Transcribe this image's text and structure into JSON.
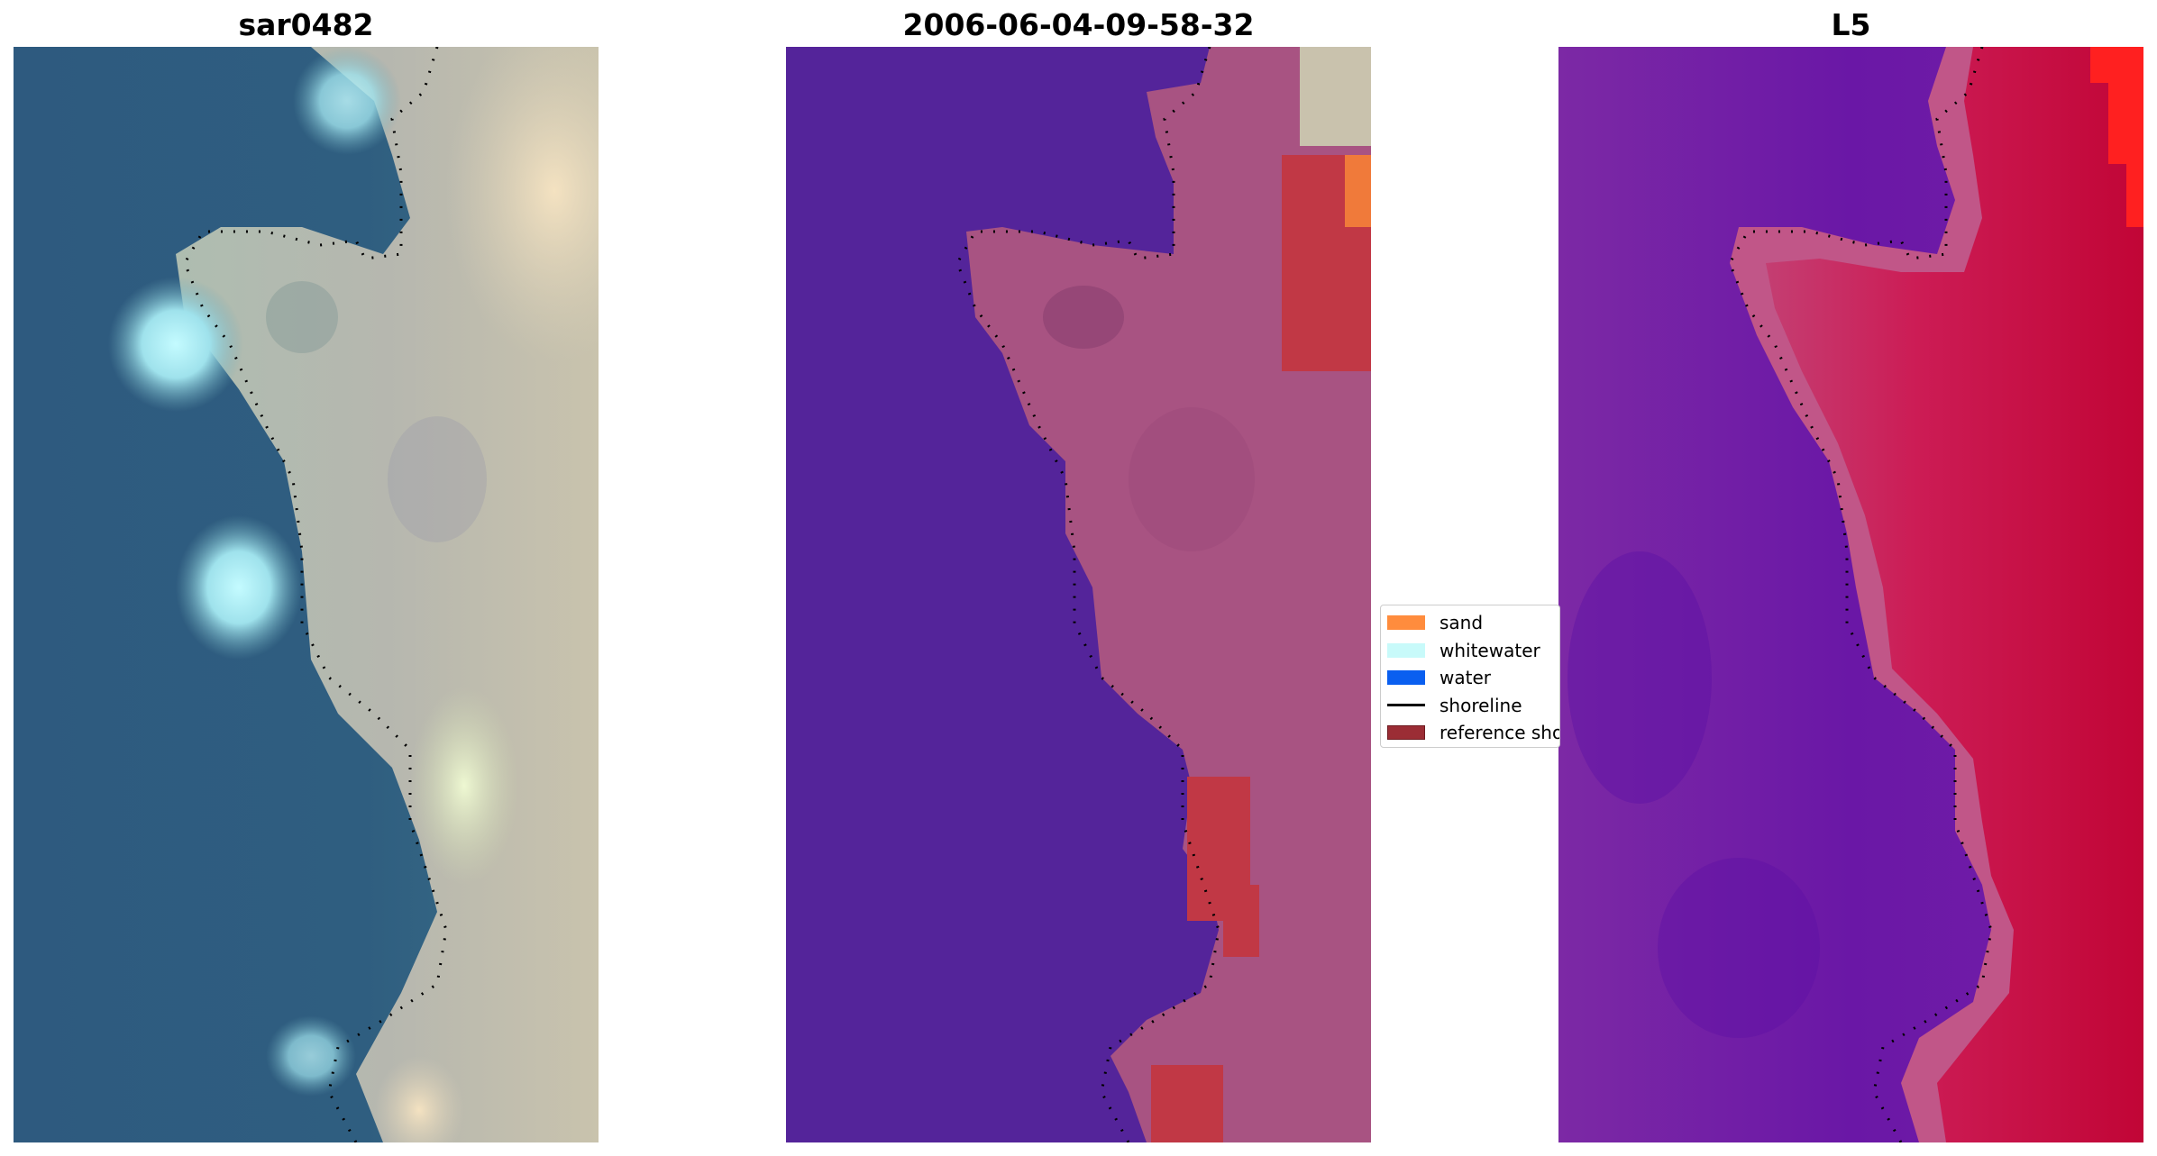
{
  "panels": [
    {
      "title": "sar0482",
      "kind": "rgb-image"
    },
    {
      "title": "2006-06-04-09-58-32",
      "kind": "classified-image"
    },
    {
      "title": "L5",
      "kind": "index-image"
    }
  ],
  "legend": {
    "items": [
      {
        "label": "sand",
        "color": "#ff8c3d",
        "type": "patch"
      },
      {
        "label": "whitewater",
        "color": "#c8fafa",
        "type": "patch"
      },
      {
        "label": "water",
        "color": "#0a5ff0",
        "type": "patch"
      },
      {
        "label": "shoreline",
        "color": "#000000",
        "type": "line"
      },
      {
        "label": "reference shoreline",
        "color": "#9b2d35",
        "type": "patch"
      }
    ]
  },
  "colors": {
    "sea_rgb": "#2f5a7e",
    "beach_rgb": "#c9c8b6",
    "class_water": "#54249a",
    "class_land": "#a85382",
    "class_red": "#c13845",
    "index_low": "#6c1aa8",
    "index_high": "#c5063a"
  }
}
